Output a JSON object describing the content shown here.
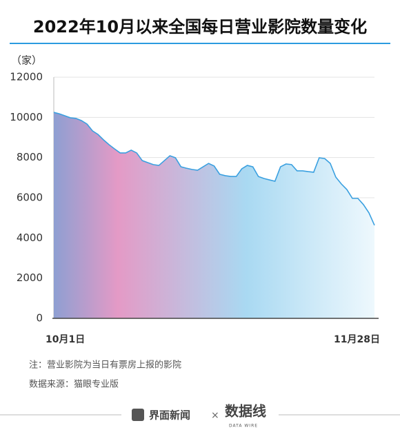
{
  "chart_data": {
    "type": "area",
    "title": "2022年10月以来全国每日营业影院数量变化",
    "y_label": "（家）",
    "categories": [
      "10月1日",
      null,
      null,
      null,
      null,
      null,
      null,
      null,
      null,
      null,
      null,
      null,
      null,
      null,
      null,
      null,
      null,
      null,
      null,
      null,
      null,
      null,
      null,
      null,
      null,
      null,
      null,
      null,
      null,
      null,
      null,
      null,
      null,
      null,
      null,
      null,
      null,
      null,
      null,
      null,
      null,
      null,
      null,
      null,
      null,
      null,
      null,
      null,
      null,
      null,
      null,
      null,
      null,
      null,
      null,
      null,
      null,
      null,
      "11月28日"
    ],
    "values": [
      10250,
      10180,
      10080,
      9980,
      9950,
      9840,
      9670,
      9330,
      9150,
      8880,
      8640,
      8430,
      8230,
      8230,
      8370,
      8230,
      7850,
      7750,
      7650,
      7610,
      7850,
      8090,
      7990,
      7540,
      7470,
      7410,
      7370,
      7540,
      7710,
      7580,
      7170,
      7100,
      7060,
      7060,
      7440,
      7610,
      7540,
      7060,
      6960,
      6890,
      6820,
      7540,
      7680,
      7650,
      7340,
      7340,
      7300,
      7270,
      7990,
      7950,
      7710,
      7030,
      6690,
      6410,
      5970,
      5970,
      5660,
      5250,
      4630
    ],
    "color": "#3aa0e0",
    "fill_colors": [
      "#8e9fd2",
      "#e49ac6",
      "#a9d9f2",
      "#eef8fd"
    ],
    "ylim": [
      0,
      12000
    ],
    "yticks": [
      0,
      2000,
      4000,
      6000,
      8000,
      10000,
      12000
    ],
    "grid": true,
    "note": "注：营业影院为当日有票房上报的影院",
    "source": "数据来源：猫眼专业版",
    "footer": {
      "brand": "界面新闻",
      "separator": "×",
      "logo": "数据线",
      "logo_sub": "DATA WIRE"
    }
  }
}
